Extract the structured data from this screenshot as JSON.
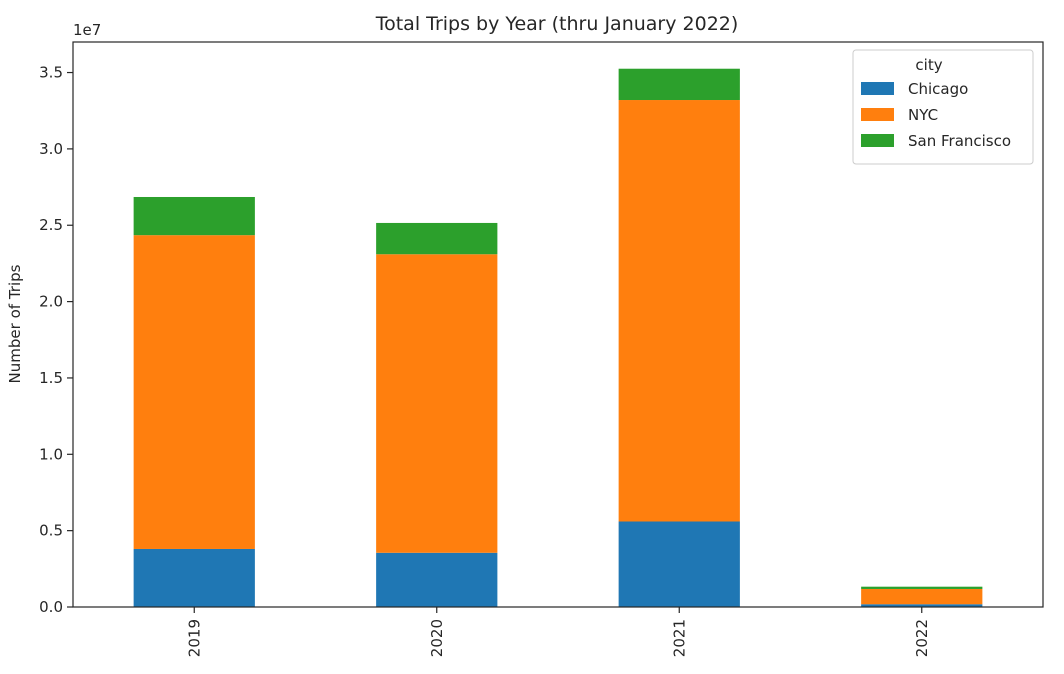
{
  "chart_data": {
    "type": "bar",
    "stacked": true,
    "title": "Total Trips by Year (thru January 2022)",
    "xlabel": "",
    "ylabel": "Number of Trips",
    "offset_text": "1e7",
    "scale": 10000000,
    "categories": [
      "2019",
      "2020",
      "2021",
      "2022"
    ],
    "ylim": [
      0,
      37000000
    ],
    "yticks": [
      0,
      5000000,
      10000000,
      15000000,
      20000000,
      25000000,
      30000000,
      35000000
    ],
    "ytick_labels": [
      "0.0",
      "0.5",
      "1.0",
      "1.5",
      "2.0",
      "2.5",
      "3.0",
      "3.5"
    ],
    "legend": {
      "title": "city",
      "placement": "top-right"
    },
    "grid": false,
    "series": [
      {
        "name": "Chicago",
        "color": "#1f77b4",
        "values": [
          3800000,
          3550000,
          5600000,
          180000
        ]
      },
      {
        "name": "NYC",
        "color": "#ff7f0e",
        "values": [
          20550000,
          19550000,
          27600000,
          1000000
        ]
      },
      {
        "name": "San Francisco",
        "color": "#2ca02c",
        "values": [
          2500000,
          2050000,
          2050000,
          150000
        ]
      }
    ]
  }
}
